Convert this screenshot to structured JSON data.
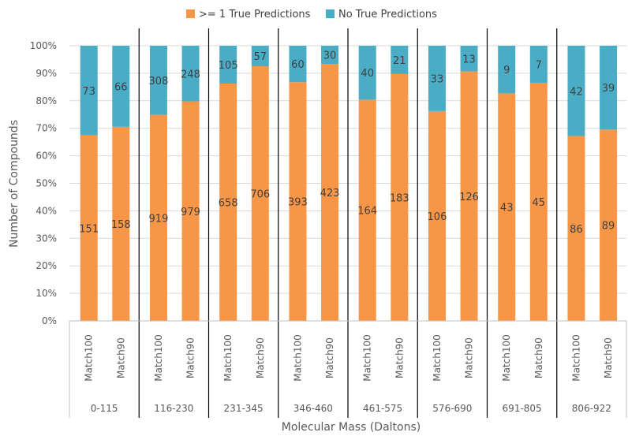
{
  "chart_data": {
    "type": "bar",
    "stacked": "percent",
    "xlabel": "Molecular Mass (Daltons)",
    "ylabel": "Number of Compounds",
    "ylim": [
      0,
      1
    ],
    "y_ticks": [
      "0%",
      "10%",
      "20%",
      "30%",
      "40%",
      "50%",
      "60%",
      "70%",
      "80%",
      "90%",
      "100%"
    ],
    "legend_position": "top",
    "series": [
      {
        "name": ">= 1 True Predictions",
        "color": "#f79646"
      },
      {
        "name": "No True Predictions",
        "color": "#4bacc6"
      }
    ],
    "groups": [
      {
        "label": "0-115",
        "bars": [
          {
            "label": "Match100",
            "values": [
              151,
              73
            ]
          },
          {
            "label": "Match90",
            "values": [
              158,
              66
            ]
          }
        ]
      },
      {
        "label": "116-230",
        "bars": [
          {
            "label": "Match100",
            "values": [
              919,
              308
            ]
          },
          {
            "label": "Match90",
            "values": [
              979,
              248
            ]
          }
        ]
      },
      {
        "label": "231-345",
        "bars": [
          {
            "label": "Match100",
            "values": [
              658,
              105
            ]
          },
          {
            "label": "Match90",
            "values": [
              706,
              57
            ]
          }
        ]
      },
      {
        "label": "346-460",
        "bars": [
          {
            "label": "Match100",
            "values": [
              393,
              60
            ]
          },
          {
            "label": "Match90",
            "values": [
              423,
              30
            ]
          }
        ]
      },
      {
        "label": "461-575",
        "bars": [
          {
            "label": "Match100",
            "values": [
              164,
              40
            ]
          },
          {
            "label": "Match90",
            "values": [
              183,
              21
            ]
          }
        ]
      },
      {
        "label": "576-690",
        "bars": [
          {
            "label": "Match100",
            "values": [
              106,
              33
            ]
          },
          {
            "label": "Match90",
            "values": [
              126,
              13
            ]
          }
        ]
      },
      {
        "label": "691-805",
        "bars": [
          {
            "label": "Match100",
            "values": [
              43,
              9
            ]
          },
          {
            "label": "Match90",
            "values": [
              45,
              7
            ]
          }
        ]
      },
      {
        "label": "806-922",
        "bars": [
          {
            "label": "Match100",
            "values": [
              86,
              42
            ]
          },
          {
            "label": "Match90",
            "values": [
              89,
              39
            ]
          }
        ]
      }
    ]
  }
}
